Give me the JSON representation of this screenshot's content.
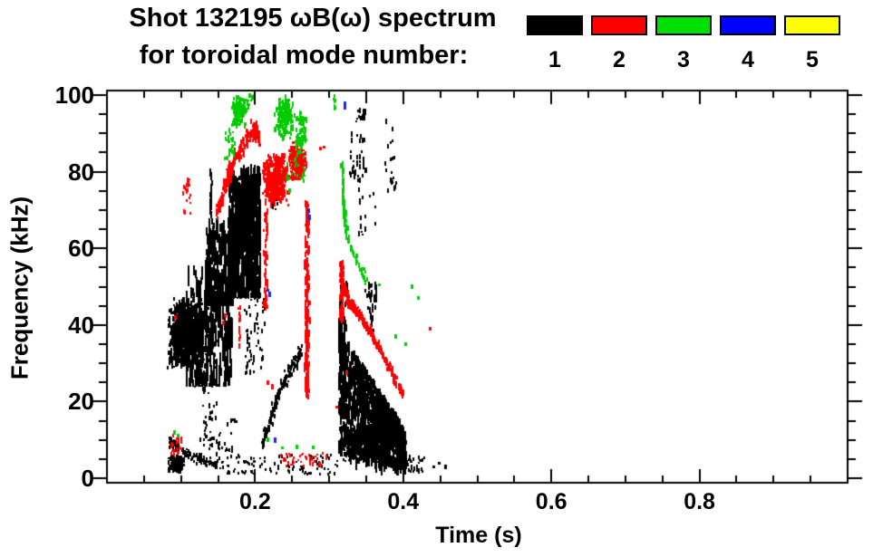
{
  "title": {
    "line1": "Shot 132195 ωB(ω) spectrum",
    "line2": "for toroidal mode number:"
  },
  "legend": {
    "items": [
      {
        "label": "1",
        "color": "#000000"
      },
      {
        "label": "2",
        "color": "#ff0000"
      },
      {
        "label": "3",
        "color": "#00e000"
      },
      {
        "label": "4",
        "color": "#0000ff"
      },
      {
        "label": "5",
        "color": "#ffff00"
      }
    ]
  },
  "chart_data": {
    "type": "scatter",
    "title": "Shot 132195 ωB(ω) spectrum for toroidal mode number: 1-5",
    "xlabel": "Time (s)",
    "ylabel": "Frequency (kHz)",
    "xlim": [
      0,
      1.0
    ],
    "ylim": [
      0,
      100
    ],
    "x_major_ticks": [
      0.2,
      0.4,
      0.6,
      0.8
    ],
    "x_tick_labels": [
      "0.2",
      "0.4",
      "0.6",
      "0.8"
    ],
    "x_minor_step": 0.05,
    "y_major_ticks": [
      0,
      20,
      40,
      60,
      80,
      100
    ],
    "y_tick_labels": [
      "0",
      "20",
      "40",
      "60",
      "80",
      "100"
    ],
    "y_minor_step": 5,
    "grid": false,
    "legend_position": "top-right",
    "mode_colors": {
      "1": "#000000",
      "2": "#ff0000",
      "3": "#00cc00",
      "4": "#2222dd",
      "5": "#ffff00"
    },
    "clusters": [
      {
        "mode": 1,
        "kind": "blob",
        "t": [
          0.08,
          0.132
        ],
        "f": [
          28,
          47
        ],
        "n": 850,
        "dash": [
          2,
          8
        ]
      },
      {
        "mode": 1,
        "kind": "vstreaks",
        "t": [
          0.105,
          0.168
        ],
        "f": [
          24,
          56
        ],
        "n": 260,
        "len": [
          6,
          28
        ]
      },
      {
        "mode": 1,
        "kind": "vstreaks",
        "t": [
          0.132,
          0.17
        ],
        "f": [
          45,
          68
        ],
        "n": 200,
        "len": [
          6,
          24
        ]
      },
      {
        "mode": 1,
        "kind": "vstreaks",
        "t": [
          0.164,
          0.206
        ],
        "f": [
          47,
          82
        ],
        "n": 380,
        "len": [
          8,
          36
        ]
      },
      {
        "mode": 1,
        "kind": "blob",
        "t": [
          0.168,
          0.203
        ],
        "f": [
          58,
          80
        ],
        "n": 450,
        "dash": [
          2,
          7
        ]
      },
      {
        "mode": 1,
        "kind": "vline",
        "t": 0.139,
        "w": 0.004,
        "f": [
          67,
          80
        ],
        "n": 25,
        "dash": [
          3,
          8
        ]
      },
      {
        "mode": 1,
        "kind": "sparse",
        "t": [
          0.128,
          0.147
        ],
        "f": [
          10,
          45
        ],
        "n": 45,
        "dash": [
          2,
          6
        ]
      },
      {
        "mode": 1,
        "kind": "sparse",
        "t": [
          0.185,
          0.212
        ],
        "f": [
          27,
          47
        ],
        "n": 55,
        "dash": [
          2,
          6
        ]
      },
      {
        "mode": 1,
        "kind": "sparse",
        "t": [
          0.125,
          0.175
        ],
        "f": [
          6,
          16
        ],
        "n": 40,
        "dash": [
          2,
          5
        ]
      },
      {
        "mode": 1,
        "kind": "path",
        "pts": [
          [
            0.209,
            9
          ],
          [
            0.218,
            14
          ],
          [
            0.228,
            20
          ],
          [
            0.24,
            26
          ],
          [
            0.252,
            30
          ],
          [
            0.262,
            33
          ]
        ],
        "fw": 3,
        "n": 170,
        "dash": [
          2,
          6
        ]
      },
      {
        "mode": 1,
        "kind": "wedge",
        "t": [
          0.312,
          0.402
        ],
        "ftop": [
          40,
          13
        ],
        "fbot": [
          6,
          3
        ],
        "n": 850,
        "len": [
          4,
          16
        ]
      },
      {
        "mode": 1,
        "kind": "blob",
        "t": [
          0.313,
          0.39
        ],
        "f": [
          4,
          14
        ],
        "n": 500,
        "dash": [
          2,
          7
        ]
      },
      {
        "mode": 1,
        "kind": "vstreaks",
        "t": [
          0.312,
          0.323
        ],
        "f": [
          28,
          52
        ],
        "n": 50,
        "len": [
          4,
          16
        ]
      },
      {
        "mode": 1,
        "kind": "vstreaks",
        "t": [
          0.347,
          0.363
        ],
        "f": [
          38,
          52
        ],
        "n": 28,
        "len": [
          3,
          10
        ]
      },
      {
        "mode": 1,
        "kind": "sparse",
        "t": [
          0.327,
          0.35
        ],
        "f": [
          77,
          100
        ],
        "n": 50,
        "dash": [
          2,
          7
        ]
      },
      {
        "mode": 1,
        "kind": "sparse",
        "t": [
          0.371,
          0.39
        ],
        "f": [
          75,
          94
        ],
        "n": 20,
        "dash": [
          2,
          6
        ]
      },
      {
        "mode": 1,
        "kind": "sparse",
        "t": [
          0.337,
          0.362
        ],
        "f": [
          63,
          77
        ],
        "n": 15,
        "dash": [
          2,
          6
        ]
      },
      {
        "mode": 1,
        "kind": "sparse",
        "t": [
          0.222,
          0.231
        ],
        "f": [
          70,
          76
        ],
        "n": 12,
        "dash": [
          2,
          5
        ]
      },
      {
        "mode": 1,
        "kind": "path",
        "pts": [
          [
            0.083,
            10
          ],
          [
            0.095,
            8
          ],
          [
            0.11,
            6
          ],
          [
            0.13,
            4.5
          ],
          [
            0.15,
            3.5
          ]
        ],
        "fw": 2,
        "n": 110,
        "dash": [
          2,
          5
        ]
      },
      {
        "mode": 1,
        "kind": "blob",
        "t": [
          0.081,
          0.104
        ],
        "f": [
          1.5,
          6
        ],
        "n": 160,
        "dash": [
          2,
          6
        ]
      },
      {
        "mode": 1,
        "kind": "sparse",
        "t": [
          0.15,
          0.312
        ],
        "f": [
          1,
          6
        ],
        "n": 110,
        "dash": [
          2,
          4
        ]
      },
      {
        "mode": 1,
        "kind": "sparse",
        "t": [
          0.4,
          0.428
        ],
        "f": [
          1.5,
          6
        ],
        "n": 35,
        "dash": [
          2,
          4
        ]
      },
      {
        "mode": 1,
        "kind": "dots",
        "pts": [
          [
            0.44,
            3
          ],
          [
            0.447,
            4
          ],
          [
            0.455,
            3
          ]
        ],
        "dash": [
          3,
          5
        ]
      },
      {
        "mode": 2,
        "kind": "path",
        "pts": [
          [
            0.145,
            67
          ],
          [
            0.158,
            76
          ],
          [
            0.17,
            83
          ],
          [
            0.183,
            87
          ],
          [
            0.196,
            91
          ],
          [
            0.205,
            89
          ]
        ],
        "fw": 3.5,
        "n": 260,
        "dash": [
          2,
          6
        ]
      },
      {
        "mode": 2,
        "kind": "blob",
        "t": [
          0.208,
          0.245
        ],
        "f": [
          71,
          85
        ],
        "n": 380,
        "dash": [
          2,
          7
        ]
      },
      {
        "mode": 2,
        "kind": "blob",
        "t": [
          0.243,
          0.269
        ],
        "f": [
          77,
          88
        ],
        "n": 220,
        "dash": [
          2,
          6
        ]
      },
      {
        "mode": 2,
        "kind": "vline",
        "t": 0.2135,
        "w": 0.007,
        "f": [
          44,
          71
        ],
        "n": 55,
        "dash": [
          3,
          8
        ]
      },
      {
        "mode": 2,
        "kind": "vline",
        "t": 0.178,
        "w": 0.004,
        "f": [
          34,
          45
        ],
        "n": 16,
        "dash": [
          3,
          7
        ]
      },
      {
        "mode": 2,
        "kind": "vline",
        "t": 0.269,
        "w": 0.01,
        "f": [
          21,
          72
        ],
        "n": 200,
        "dash": [
          3,
          9
        ]
      },
      {
        "mode": 2,
        "kind": "vline",
        "t": 0.316,
        "w": 0.007,
        "f": [
          41,
          56
        ],
        "n": 70,
        "dash": [
          3,
          8
        ]
      },
      {
        "mode": 2,
        "kind": "path",
        "pts": [
          [
            0.3155,
            56
          ],
          [
            0.32,
            49
          ],
          [
            0.326,
            46
          ],
          [
            0.334,
            44
          ],
          [
            0.344,
            41.5
          ],
          [
            0.356,
            38
          ],
          [
            0.37,
            32.5
          ],
          [
            0.385,
            27
          ],
          [
            0.398,
            22
          ]
        ],
        "fw": 1.6,
        "n": 280,
        "dash": [
          3,
          7
        ]
      },
      {
        "mode": 2,
        "kind": "sparse",
        "t": [
          0.101,
          0.113
        ],
        "f": [
          69,
          78
        ],
        "n": 22,
        "dash": [
          2,
          6
        ]
      },
      {
        "mode": 2,
        "kind": "sparse",
        "t": [
          0.085,
          0.1
        ],
        "f": [
          6,
          11
        ],
        "n": 28,
        "dash": [
          2,
          5
        ]
      },
      {
        "mode": 2,
        "kind": "sparse",
        "t": [
          0.228,
          0.295
        ],
        "f": [
          3,
          6.5
        ],
        "n": 45,
        "dash": [
          2,
          4
        ]
      },
      {
        "mode": 2,
        "kind": "dots",
        "pts": [
          [
            0.09,
            42
          ],
          [
            0.155,
            40.5
          ],
          [
            0.158,
            42.5
          ],
          [
            0.205,
            87
          ],
          [
            0.216,
            25
          ],
          [
            0.221,
            24
          ],
          [
            0.286,
            86
          ],
          [
            0.291,
            86.5
          ],
          [
            0.308,
            18.5
          ],
          [
            0.322,
            27.5
          ],
          [
            0.434,
            39
          ]
        ],
        "dash": [
          3,
          6
        ]
      },
      {
        "mode": 3,
        "kind": "blob",
        "t": [
          0.167,
          0.186
        ],
        "f": [
          91,
          100
        ],
        "n": 120,
        "dash": [
          2,
          7
        ]
      },
      {
        "mode": 3,
        "kind": "sparse",
        "t": [
          0.158,
          0.172
        ],
        "f": [
          83,
          91
        ],
        "n": 30,
        "dash": [
          2,
          6
        ]
      },
      {
        "mode": 3,
        "kind": "sparse",
        "t": [
          0.186,
          0.198
        ],
        "f": [
          96,
          100
        ],
        "n": 15,
        "dash": [
          2,
          6
        ]
      },
      {
        "mode": 3,
        "kind": "blob",
        "t": [
          0.225,
          0.252
        ],
        "f": [
          88,
          100
        ],
        "n": 130,
        "dash": [
          2,
          7
        ]
      },
      {
        "mode": 3,
        "kind": "blob",
        "t": [
          0.252,
          0.27
        ],
        "f": [
          84,
          97
        ],
        "n": 80,
        "dash": [
          2,
          6
        ]
      },
      {
        "mode": 3,
        "kind": "sparse",
        "t": [
          0.24,
          0.268
        ],
        "f": [
          77,
          85
        ],
        "n": 25,
        "dash": [
          2,
          5
        ]
      },
      {
        "mode": 3,
        "kind": "vline",
        "t": 0.306,
        "w": 0.003,
        "f": [
          96,
          100
        ],
        "n": 10,
        "dash": [
          3,
          6
        ]
      },
      {
        "mode": 3,
        "kind": "path",
        "pts": [
          [
            0.3165,
            82
          ],
          [
            0.318,
            74
          ],
          [
            0.32,
            68
          ],
          [
            0.324,
            63
          ],
          [
            0.33,
            59
          ],
          [
            0.34,
            55
          ],
          [
            0.35,
            51.5
          ]
        ],
        "fw": 1.5,
        "n": 90,
        "dash": [
          3,
          7
        ]
      },
      {
        "mode": 3,
        "kind": "dots",
        "pts": [
          [
            0.335,
            58
          ],
          [
            0.345,
            54.5
          ],
          [
            0.366,
            50.5
          ],
          [
            0.388,
            37
          ],
          [
            0.402,
            35
          ],
          [
            0.41,
            50
          ],
          [
            0.419,
            47
          ],
          [
            0.245,
            75
          ],
          [
            0.235,
            8
          ],
          [
            0.255,
            8
          ],
          [
            0.277,
            8
          ],
          [
            0.216,
            10
          ],
          [
            0.089,
            12
          ],
          [
            0.094,
            11
          ]
        ],
        "dash": [
          3,
          6
        ]
      },
      {
        "mode": 4,
        "kind": "dots",
        "pts": [
          [
            0.271,
            70
          ],
          [
            0.272,
            68
          ],
          [
            0.216,
            49
          ],
          [
            0.218,
            48
          ],
          [
            0.319,
            98
          ],
          [
            0.32,
            97
          ],
          [
            0.225,
            10
          ]
        ],
        "dash": [
          3,
          6
        ]
      }
    ]
  }
}
